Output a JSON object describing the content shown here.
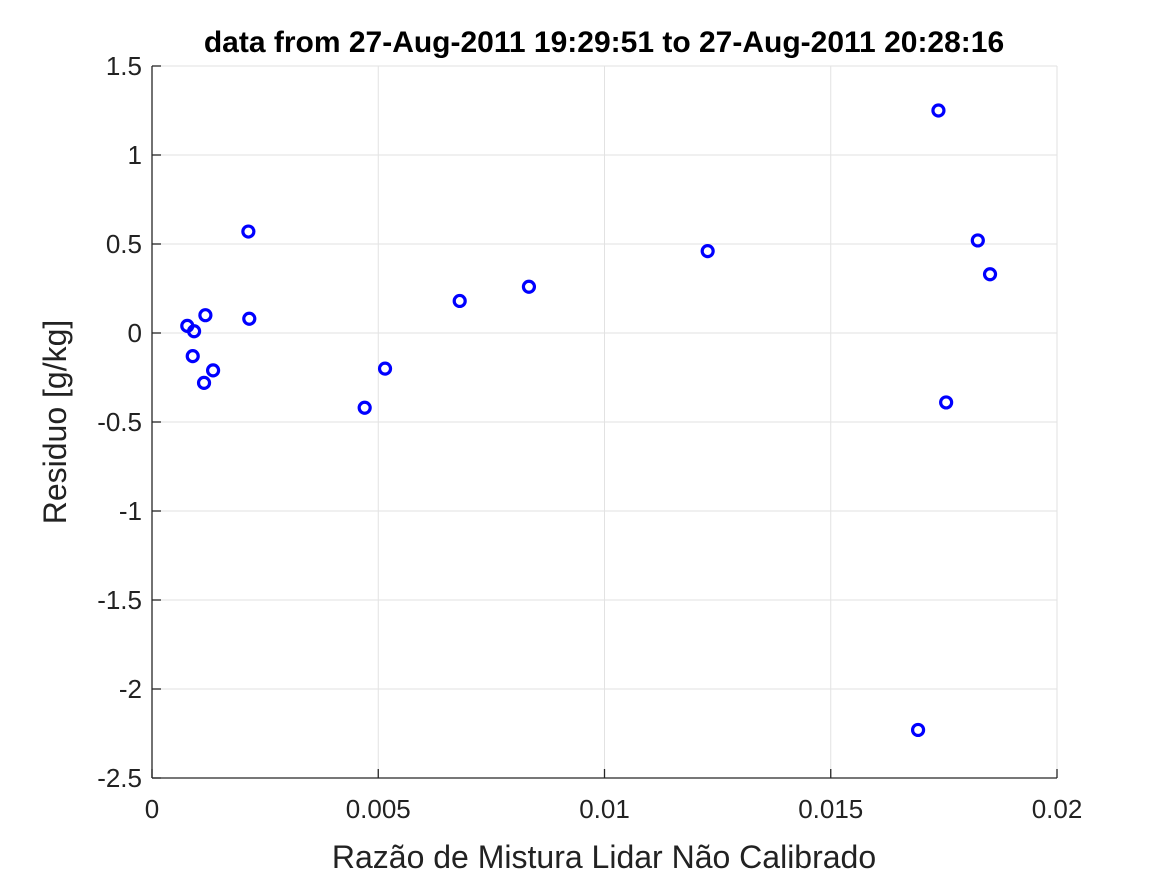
{
  "chart_data": {
    "type": "scatter",
    "title": "data from 27-Aug-2011 19:29:51 to 27-Aug-2011 20:28:16",
    "xlabel": "Razão de Mistura Lidar Não Calibrado",
    "ylabel": "Residuo [g/kg]",
    "xlim": [
      0,
      0.02
    ],
    "ylim": [
      -2.5,
      1.5
    ],
    "xticks": [
      0,
      0.005,
      0.01,
      0.015,
      0.02
    ],
    "xtick_labels": [
      "0",
      "0.005",
      "0.01",
      "0.015",
      "0.02"
    ],
    "yticks": [
      -2.5,
      -2,
      -1.5,
      -1,
      -0.5,
      0,
      0.5,
      1,
      1.5
    ],
    "ytick_labels": [
      "-2.5",
      "-2",
      "-1.5",
      "-1",
      "-0.5",
      "0",
      "0.5",
      "1",
      "1.5"
    ],
    "grid": true,
    "marker": "circle",
    "marker_color": "#0000ff",
    "series": [
      {
        "x": [
          0.00078,
          0.0009,
          0.00093,
          0.00115,
          0.00118,
          0.00135,
          0.00213,
          0.00215,
          0.0047,
          0.00515,
          0.0068,
          0.00833,
          0.01228,
          0.01693,
          0.01738,
          0.01755,
          0.01825,
          0.01852
        ],
        "y": [
          0.04,
          -0.13,
          0.01,
          -0.28,
          0.1,
          -0.21,
          0.57,
          0.08,
          -0.42,
          -0.2,
          0.18,
          0.26,
          0.46,
          -2.23,
          1.25,
          -0.39,
          0.52,
          0.33
        ]
      }
    ]
  }
}
